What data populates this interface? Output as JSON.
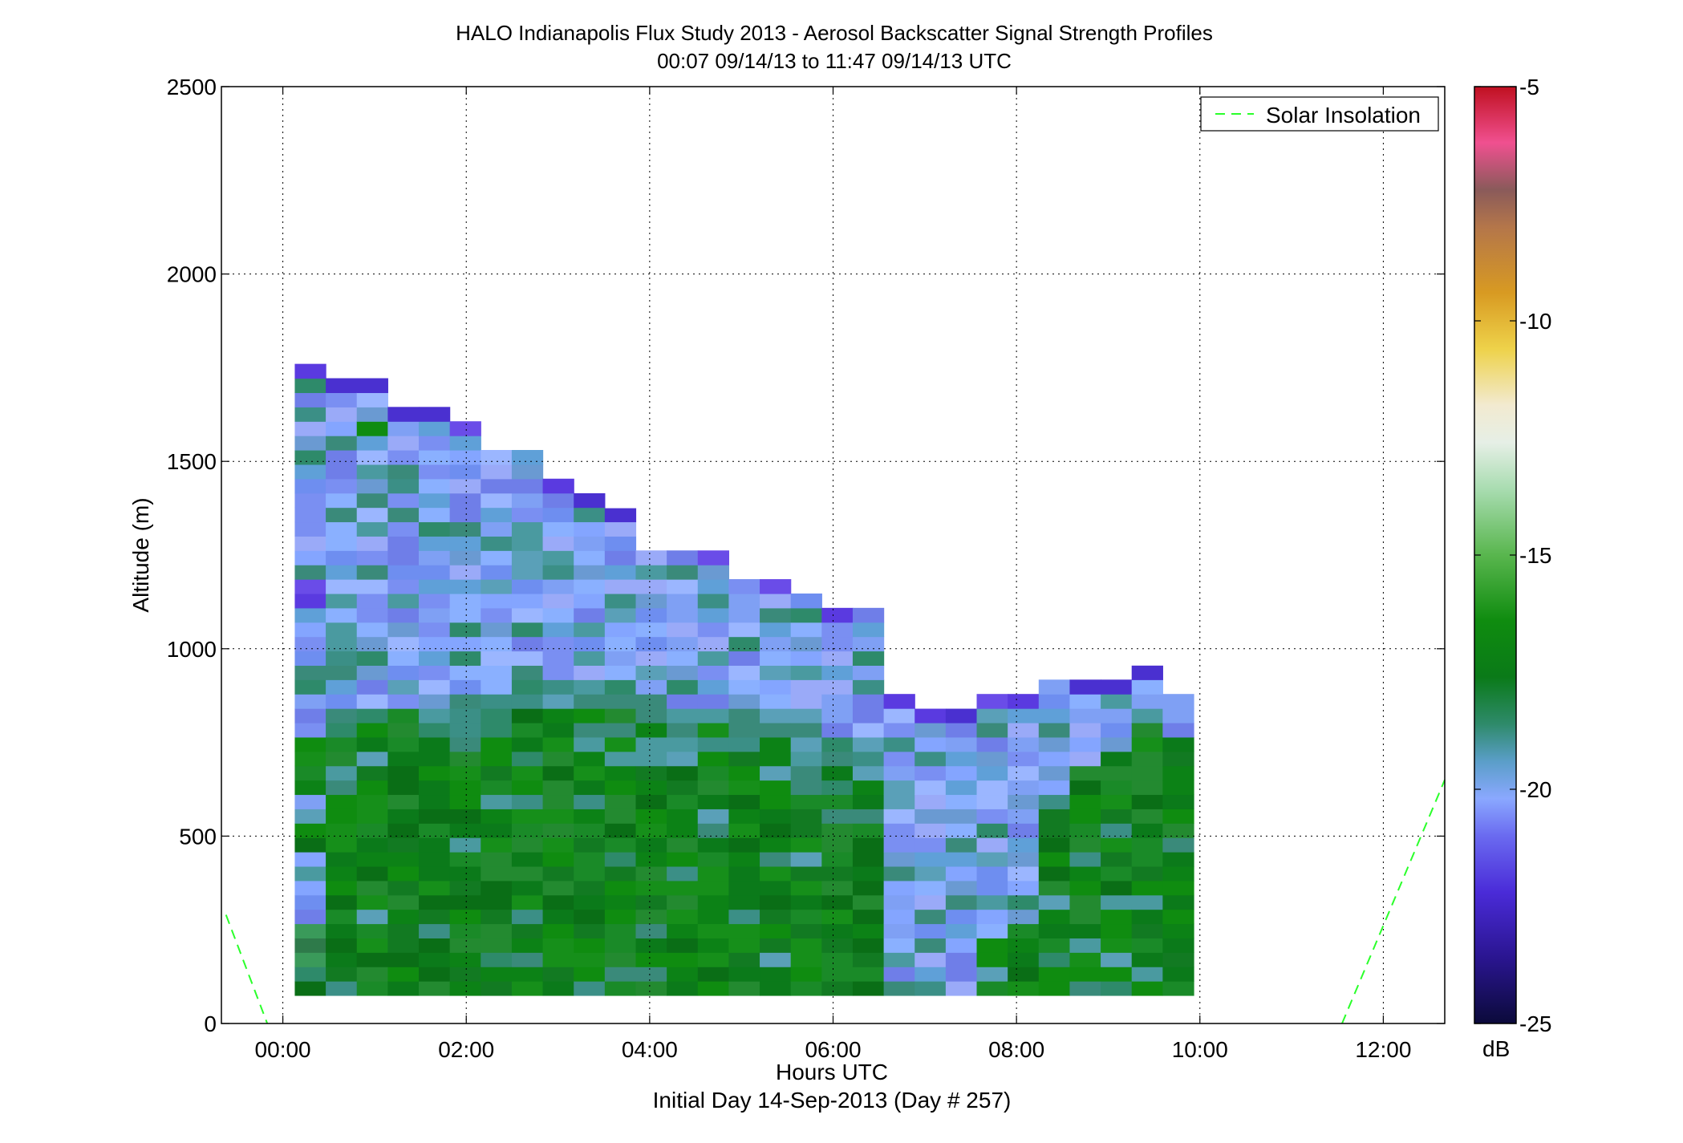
{
  "chart_data": {
    "type": "heatmap",
    "title": "HALO Indianapolis Flux Study 2013 - Aerosol Backscatter Signal Strength Profiles",
    "subtitle": "00:07 09/14/13 to 11:47 09/14/13  UTC",
    "xlabel": "Hours UTC",
    "xlabel2": "Initial Day 14-Sep-2013 (Day # 257)",
    "ylabel": "Altitude (m)",
    "x_ticks": [
      "00:00",
      "02:00",
      "04:00",
      "06:00",
      "08:00",
      "10:00",
      "12:00"
    ],
    "y_ticks": [
      "0",
      "500",
      "1000",
      "1500",
      "2000",
      "2500"
    ],
    "xlim_hours": [
      -0.67,
      12.67
    ],
    "ylim": [
      0,
      2500
    ],
    "grid": true,
    "legend": {
      "placement": "top-right",
      "entries": [
        "Solar Insolation"
      ]
    },
    "colorbar": {
      "label": "dB",
      "range": [
        -25,
        -5
      ],
      "ticks": [
        "-5",
        "-10",
        "-15",
        "-20",
        "-25"
      ]
    },
    "grid_spec": {
      "x_start_hours": 0.13,
      "x_step_hours": 0.338,
      "y_bottom_m": 75,
      "y_step_m": 38.3,
      "columns": 29
    },
    "columns_profiles": [
      {
        "top_m": 1765,
        "levels": "gghhhbaaabbggbbgggggbbbccbbaabddbbbabaaaaaeacaaaa"
      },
      {
        "top_m": 1725,
        "levels": "fgggggfgggggggffgggggcbbbbbaabcbbbabaabaaafabbdb"
      },
      {
        "top_m": 1725,
        "levels": "ggggggggfggggggggggggcbbbcbbbaabbbbbaabbaaagabdd"
      },
      {
        "top_m": 1650,
        "levels": "gggggggggggggggggggggfbbbbbbbaaaaaaabbaaaaaaaa"
      },
      {
        "top_m": 1650,
        "levels": "ggggggggggggggggggggfcbbbbbbbaaaaaaabaaaaaaabb"
      },
      {
        "top_m": 1610,
        "levels": "ggggggggggggggggggggfccbbbbbaaaaaaabbaaaaaaab"
      },
      {
        "top_m": 1535,
        "levels": "gggggggggggggggggggffccbbbbbbaaaaaaaabbaaa"
      },
      {
        "top_m": 1535,
        "levels": "gggggggggggggggggggffccbbbbbbaaaaaaabbaa"
      },
      {
        "top_m": 1455,
        "levels": "gggggggggggggggggggffccbbbbbbbaaaaaaab"
      },
      {
        "top_m": 1415,
        "levels": "gggggggggggggggggfffccbbbbbbbaaaaaab"
      },
      {
        "top_m": 1375,
        "levels": "ggggggggggggggggffffccbbbbbbbaaaaaa"
      },
      {
        "top_m": 1265,
        "levels": "ggggggggggggggggffffccbbbbbbbaaaa"
      },
      {
        "top_m": 1265,
        "levels": "ggggggggggggggggffffcbbbbbbbbaaaa"
      },
      {
        "top_m": 1265,
        "levels": "gggggggggggggggfffffcbbbbbbbaaaaa"
      },
      {
        "top_m": 1190,
        "levels": "gggggggggggggggffffccbbbbbbbaaa"
      },
      {
        "top_m": 1190,
        "levels": "gggggggggggggggffffccbbbbbbbbaa"
      },
      {
        "top_m": 1150,
        "levels": "ggggggggggggggffffccbbbbbbbbaa"
      },
      {
        "top_m": 1110,
        "levels": "gggggggggggggffffccbbbbbbbbbaa"
      },
      {
        "top_m": 1110,
        "levels": "ggggggggggggffffcccbbbbbbbbaa"
      },
      {
        "top_m": 880,
        "levels": "bbbbbbbbbbbbbbbbbbbbbbbbbb"
      },
      {
        "top_m": 840,
        "levels": "bbbbbbbbbbbbbbbbbbbbbbbbbb"
      },
      {
        "top_m": 840,
        "levels": "bbbbbbbbbbbbbbbbbbbbbbbbbb"
      },
      {
        "top_m": 880,
        "levels": "ggggbbbbbbbbbbbbbbbbbbbbbbb"
      },
      {
        "top_m": 880,
        "levels": "ggggggbbbbbbbbbbbbbbbbbbbbb"
      },
      {
        "top_m": 920,
        "levels": "ggggggggggggggggggbbbbbbbbbbb"
      },
      {
        "top_m": 920,
        "levels": "ggggggggggggggggggggbbbbbbbbb"
      },
      {
        "top_m": 920,
        "levels": "ggggggggggggggggggggggbbbbbbb"
      },
      {
        "top_m": 955,
        "levels": "ggggggggggggggggggggggggbbbbbb"
      },
      {
        "top_m": 880,
        "levels": "gggggggggggggggggggggggbbbbb"
      }
    ]
  }
}
